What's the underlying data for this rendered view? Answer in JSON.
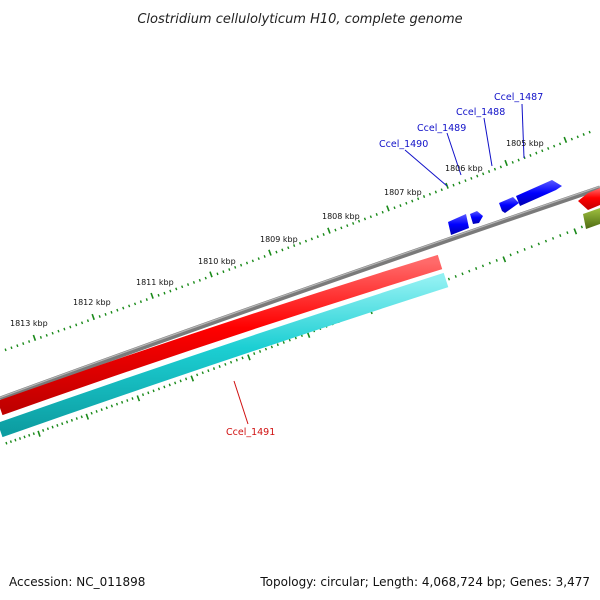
{
  "title": "Clostridium cellulolyticum H10, complete genome",
  "footer": {
    "accession": "Accession: NC_011898",
    "summary": "Topology: circular; Length: 4,068,724 bp; Genes: 3,477"
  },
  "colors": {
    "backbone": "#808080",
    "tick": "#1a8a1a",
    "forward_gene": "#1515e6",
    "reverse_gene": "#e61010",
    "cds": "#22c8cc",
    "other": "#6b8e23"
  },
  "scale_labels": [
    "1805 kbp",
    "1806 kbp",
    "1807 kbp",
    "1808 kbp",
    "1809 kbp",
    "1810 kbp",
    "1811 kbp",
    "1812 kbp",
    "1813 kbp"
  ],
  "genes": {
    "forward": [
      "Ccel_1487",
      "Ccel_1488",
      "Ccel_1489",
      "Ccel_1490"
    ],
    "reverse": [
      "Ccel_1491"
    ]
  }
}
